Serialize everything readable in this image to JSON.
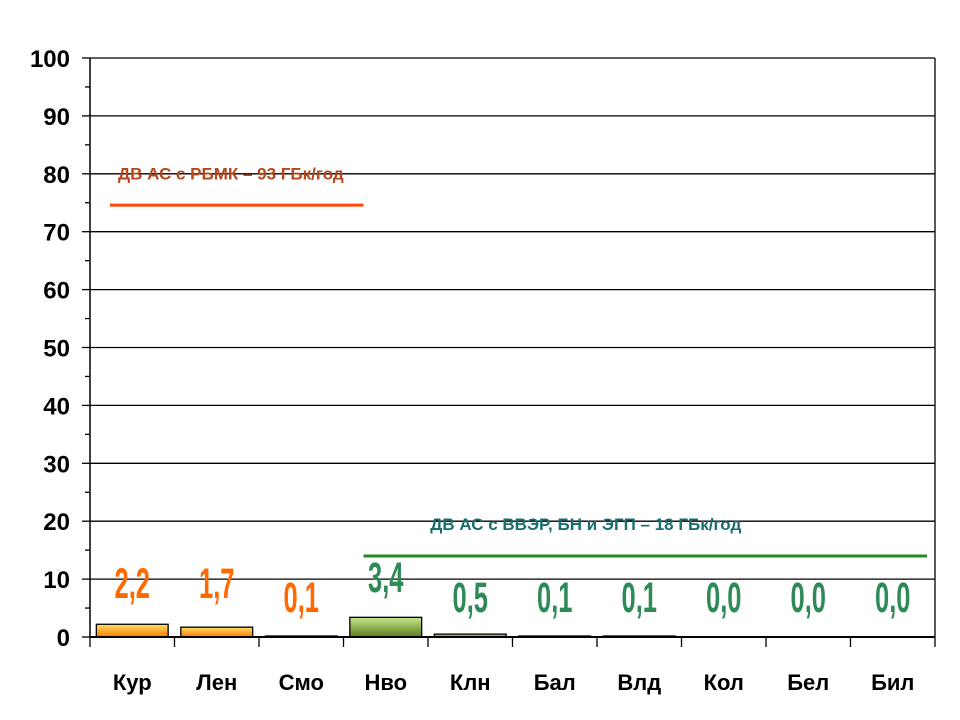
{
  "chart_data": {
    "type": "bar",
    "categories": [
      "Кур",
      "Лен",
      "Смо",
      "Нво",
      "Клн",
      "Бал",
      "Влд",
      "Кол",
      "Бел",
      "Бил"
    ],
    "values": [
      2.2,
      1.7,
      0.1,
      3.4,
      0.5,
      0.1,
      0.1,
      0.0,
      0.0,
      0.0
    ],
    "data_labels": [
      "2,2",
      "1,7",
      "0,1",
      "3,4",
      "0,5",
      "0,1",
      "0,1",
      "0,0",
      "0,0",
      "0,0"
    ],
    "ylim": [
      0,
      100
    ],
    "yticks": [
      "0",
      "10",
      "20",
      "30",
      "40",
      "50",
      "60",
      "70",
      "80",
      "90",
      "100"
    ],
    "grid": true,
    "reference_lines": [
      {
        "label": "ДВ АС с РБМК – 93 ГБк/год",
        "value": 77,
        "from_category": 0,
        "to_category": 2,
        "color": "#ff4500",
        "text_color": "#b5471c"
      },
      {
        "label": "ДВ АС с ВВЭР, БН и ЭГП – 18 ГБк/год",
        "value": 14,
        "from_category": 3,
        "to_category": 9,
        "color": "#228b22",
        "text_color": "#1a6e6e"
      }
    ],
    "colors": {
      "rbmk_bar": "#ff8c00",
      "rbmk_bar_light": "#ffd700",
      "rbmk_label": "#ff6a00",
      "vver_bar": "#6b8e23",
      "vver_bar_light": "#c8e68c",
      "vver_label": "#2e8b57"
    }
  }
}
